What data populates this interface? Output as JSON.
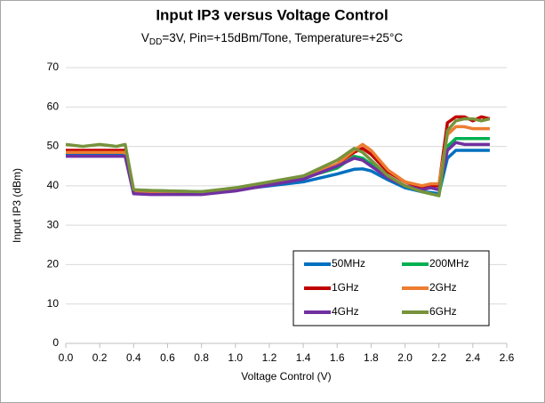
{
  "chart_data": {
    "type": "line",
    "title": "Input IP3 versus Voltage Control",
    "subtitle": [
      "V",
      "DD",
      "=3V, Pin=+15dBm/Tone, Temperature=+25°C"
    ],
    "x_label": "Voltage Control (V)",
    "y_label": "Input IP3 (dBm)",
    "x": [
      0,
      0.1,
      0.2,
      0.3,
      0.35,
      0.4,
      0.5,
      0.6,
      0.8,
      1.0,
      1.2,
      1.4,
      1.6,
      1.7,
      1.75,
      1.8,
      1.9,
      2.0,
      2.1,
      2.15,
      2.2,
      2.25,
      2.3,
      2.35,
      2.4,
      2.45,
      2.5
    ],
    "series": [
      {
        "name": "50MHz",
        "color": "#0070c0",
        "values": [
          48,
          48,
          48,
          48,
          48,
          38.5,
          38.5,
          38.5,
          38.3,
          39,
          40,
          41,
          43,
          44.2,
          44.3,
          43.8,
          41.5,
          39.5,
          38.5,
          38.3,
          38,
          47,
          49,
          49,
          49,
          49,
          49
        ]
      },
      {
        "name": "200MHz",
        "color": "#00b050",
        "values": [
          48.5,
          48.5,
          48.5,
          48.5,
          48.5,
          38.8,
          38.8,
          38.7,
          38.5,
          39.3,
          40.5,
          42,
          44.5,
          47.5,
          47,
          45.5,
          42,
          40,
          38.5,
          38,
          37.5,
          50,
          52,
          52,
          52,
          52,
          52
        ]
      },
      {
        "name": "1GHz",
        "color": "#c00000",
        "values": [
          49,
          49,
          49,
          49,
          49,
          38.5,
          38.3,
          38.2,
          38,
          39,
          40.5,
          42,
          45.5,
          48.5,
          49.5,
          48,
          43.5,
          41,
          39.5,
          40,
          40,
          56,
          57.5,
          57.5,
          56.5,
          57.5,
          57
        ]
      },
      {
        "name": "2GHz",
        "color": "#ed7d31",
        "values": [
          48.5,
          48.5,
          48.5,
          48.5,
          48.5,
          38.5,
          38.3,
          38.2,
          38,
          39,
          40.5,
          42,
          45.5,
          49,
          50.5,
          49,
          44,
          41,
          40,
          40.5,
          40.5,
          53,
          55,
          55,
          54.5,
          54.5,
          54.5
        ]
      },
      {
        "name": "4GHz",
        "color": "#7030a0",
        "values": [
          47.5,
          47.5,
          47.5,
          47.5,
          47.5,
          38,
          37.8,
          37.8,
          37.8,
          38.7,
          40.2,
          41.7,
          45,
          47,
          46.5,
          45,
          42,
          40,
          39,
          39.5,
          39,
          49,
          51,
          50.5,
          50.5,
          50.5,
          50.5
        ]
      },
      {
        "name": "6GHz",
        "color": "#77933c",
        "values": [
          50.5,
          50,
          50.5,
          50,
          50.5,
          39,
          38.8,
          38.7,
          38.5,
          39.5,
          41,
          42.5,
          46.5,
          49.5,
          48.5,
          46.5,
          42.5,
          40,
          38.5,
          38,
          37.5,
          54,
          56.5,
          57,
          57,
          56.5,
          57
        ]
      }
    ],
    "xlim": [
      0,
      2.6
    ],
    "xticks": [
      {
        "value": 0,
        "label": "0.0"
      },
      0.2,
      0.4,
      0.6,
      0.8,
      {
        "value": 1,
        "label": "1.0"
      },
      1.2,
      1.4,
      1.6,
      1.8,
      {
        "value": 2,
        "label": "2.0"
      },
      2.2,
      2.4,
      2.6
    ],
    "ylim": [
      0,
      70
    ],
    "yticks": [
      0,
      10,
      20,
      30,
      40,
      50,
      60,
      70
    ],
    "grid": true,
    "legend": "lower right"
  }
}
